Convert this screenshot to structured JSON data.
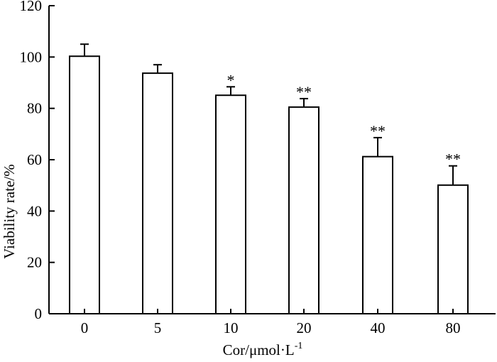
{
  "chart_data": {
    "type": "bar",
    "categories": [
      "0",
      "5",
      "10",
      "20",
      "40",
      "80"
    ],
    "values": [
      100.3,
      93.7,
      85.1,
      80.5,
      61.2,
      50.1
    ],
    "errors": [
      4.7,
      3.3,
      3.3,
      3.3,
      7.4,
      7.5
    ],
    "annotations": [
      "",
      "",
      "*",
      "**",
      "**",
      "**"
    ],
    "xlabel_main": "Cor/μmol·L",
    "xlabel_sup": "-1",
    "ylabel": "Viability rate/%",
    "ylim": [
      0,
      120
    ],
    "yticks": [
      "0",
      "20",
      "40",
      "60",
      "80",
      "100",
      "120"
    ],
    "grid": false,
    "legend": "none",
    "bar_fill": "#ffffff",
    "bar_stroke": "#000000"
  }
}
